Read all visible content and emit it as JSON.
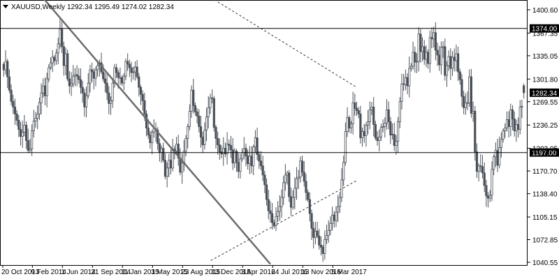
{
  "header": {
    "symbol": "XAUUSD,Weekly",
    "ohlc": "1292.34 1295.49 1274.02 1282.34"
  },
  "chart_data": {
    "type": "candlestick",
    "instrument": "XAUUSD",
    "timeframe": "Weekly",
    "title": "XAUUSD,Weekly",
    "last_bar": {
      "open": 1292.34,
      "high": 1295.49,
      "low": 1274.02,
      "close": 1282.34
    },
    "ylim": [
      1040.55,
      1400.6
    ],
    "y_ticks": [
      "1400.60",
      "1367.35",
      "1335.05",
      "1301.80",
      "1269.55",
      "1236.25",
      "1203.05",
      "1170.70",
      "1138.40",
      "1105.15",
      "1072.85",
      "1040.55"
    ],
    "x_ticks": [
      "20 Oct 2013",
      "9 Feb 2014",
      "1 Jun 2014",
      "21 Sep 2014",
      "11 Jan 2015",
      "3 May 2015",
      "23 Aug 2015",
      "13 Dec 2015",
      "3 Apr 2016",
      "24 Jul 2016",
      "13 Nov 2016",
      "5 Mar 2017"
    ],
    "levels": [
      {
        "name": "resistance",
        "value": 1374.0,
        "label": "1374.00"
      },
      {
        "name": "support",
        "value": 1197.0,
        "label": "1197.00"
      },
      {
        "name": "current",
        "value": 1282.34,
        "label": "1282.34"
      }
    ],
    "trendlines": [
      {
        "name": "falling-trendline",
        "style": "solid",
        "from": {
          "date": "2014-03-10",
          "price": 1420
        },
        "to": {
          "date": "2016-07-10",
          "price": 1038
        }
      },
      {
        "name": "upper-triangle-line",
        "style": "dashed",
        "from": {
          "date": "2015-12-01",
          "price": 1418
        },
        "to": {
          "date": "2017-05-28",
          "price": 1290
        }
      },
      {
        "name": "lower-triangle-line",
        "style": "dashed",
        "from": {
          "date": "2015-12-01",
          "price": 1043
        },
        "to": {
          "date": "2017-05-28",
          "price": 1157
        }
      }
    ],
    "grid": false,
    "colors": {
      "candle": "#4a5058",
      "trendline": "#6b6b6b",
      "level": "#000000"
    },
    "closes": [
      1315,
      1327,
      1305,
      1286,
      1270,
      1262,
      1252,
      1243,
      1230,
      1220,
      1226,
      1236,
      1214,
      1200,
      1202,
      1228,
      1242,
      1246,
      1252,
      1268,
      1282,
      1292,
      1278,
      1302,
      1318,
      1325,
      1333,
      1328,
      1339,
      1352,
      1373,
      1348,
      1321,
      1338,
      1302,
      1292,
      1295,
      1306,
      1308,
      1306,
      1301,
      1290,
      1282,
      1262,
      1278,
      1296,
      1315,
      1312,
      1303,
      1315,
      1321,
      1325,
      1312,
      1302,
      1296,
      1282,
      1267,
      1271,
      1296,
      1318,
      1311,
      1304,
      1304,
      1296,
      1306,
      1327,
      1323,
      1318,
      1311,
      1312,
      1319,
      1305,
      1290,
      1280,
      1271,
      1252,
      1232,
      1222,
      1211,
      1226,
      1231,
      1229,
      1210,
      1197,
      1203,
      1186,
      1163,
      1175,
      1186,
      1175,
      1202,
      1199,
      1209,
      1189,
      1169,
      1182,
      1199,
      1217,
      1234,
      1256,
      1286,
      1264,
      1255,
      1249,
      1234,
      1219,
      1208,
      1229,
      1248,
      1261,
      1275,
      1274,
      1233,
      1217,
      1208,
      1198,
      1195,
      1203,
      1195,
      1209,
      1207,
      1201,
      1182,
      1199,
      1183,
      1170,
      1188,
      1197,
      1203,
      1192,
      1181,
      1192,
      1178,
      1205,
      1218,
      1194,
      1185,
      1178,
      1165,
      1151,
      1130,
      1114,
      1110,
      1097,
      1093,
      1106,
      1113,
      1120,
      1133,
      1154,
      1165,
      1168,
      1134,
      1119,
      1133,
      1146,
      1160,
      1162,
      1185,
      1169,
      1156,
      1140,
      1130,
      1110,
      1089,
      1076,
      1085,
      1078,
      1065,
      1062,
      1053,
      1073,
      1079,
      1086,
      1096,
      1108,
      1100,
      1112,
      1120,
      1133,
      1158,
      1183,
      1227,
      1247,
      1232,
      1238,
      1268,
      1260,
      1257,
      1252,
      1218,
      1227,
      1221,
      1236,
      1241,
      1258,
      1262,
      1237,
      1218,
      1214,
      1219,
      1233,
      1234,
      1239,
      1258,
      1241,
      1222,
      1223,
      1207,
      1213,
      1241,
      1270,
      1295,
      1294,
      1304,
      1292,
      1317,
      1320,
      1340,
      1326,
      1327,
      1366,
      1341,
      1348,
      1330,
      1340,
      1324,
      1361,
      1359,
      1368,
      1343,
      1336,
      1322,
      1347,
      1348,
      1307,
      1321,
      1334,
      1317,
      1333,
      1328,
      1338,
      1312,
      1301,
      1277,
      1261,
      1268,
      1268,
      1305,
      1253,
      1256,
      1198,
      1170,
      1178,
      1177,
      1168,
      1150,
      1135,
      1132,
      1136,
      1173,
      1191,
      1200,
      1179,
      1204,
      1216,
      1228,
      1232,
      1244,
      1234,
      1258,
      1245,
      1228,
      1237,
      1230,
      1262,
      1263,
      1282
    ]
  }
}
